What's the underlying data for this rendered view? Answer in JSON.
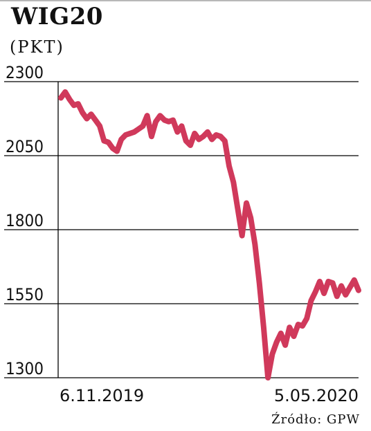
{
  "title": "WIG20",
  "unit": "(PKT)",
  "source": "Źródło: GPW",
  "colors": {
    "line": "#d0395b",
    "grid": "#000000",
    "text": "#111111"
  },
  "chart_data": {
    "type": "line",
    "title": "WIG20",
    "xlabel": "",
    "ylabel": "(PKT)",
    "ylim": [
      1300,
      2300
    ],
    "yticks": [
      "2300",
      "2050",
      "1800",
      "1550",
      "1300"
    ],
    "xticks": [
      "6.11.2019",
      "5.05.2020"
    ],
    "grid": true,
    "series": [
      {
        "values": [
          2245,
          2265,
          2240,
          2220,
          2225,
          2195,
          2175,
          2190,
          2170,
          2150,
          2100,
          2095,
          2075,
          2065,
          2105,
          2120,
          2125,
          2130,
          2140,
          2150,
          2185,
          2115,
          2165,
          2185,
          2170,
          2165,
          2170,
          2130,
          2150,
          2100,
          2085,
          2125,
          2105,
          2115,
          2130,
          2105,
          2120,
          2115,
          2100,
          2015,
          1960,
          1870,
          1780,
          1890,
          1840,
          1750,
          1620,
          1470,
          1300,
          1380,
          1420,
          1450,
          1410,
          1470,
          1440,
          1480,
          1475,
          1500,
          1560,
          1590,
          1625,
          1585,
          1625,
          1620,
          1575,
          1610,
          1580,
          1605,
          1630,
          1595
        ]
      }
    ]
  }
}
